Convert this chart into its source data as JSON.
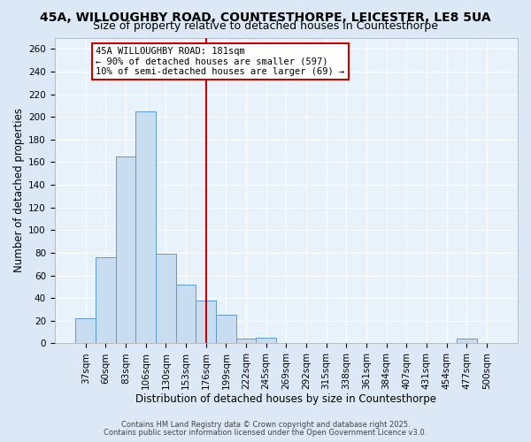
{
  "title1": "45A, WILLOUGHBY ROAD, COUNTESTHORPE, LEICESTER, LE8 5UA",
  "title2": "Size of property relative to detached houses in Countesthorpe",
  "xlabel": "Distribution of detached houses by size in Countesthorpe",
  "ylabel": "Number of detached properties",
  "bar_labels": [
    "37sqm",
    "60sqm",
    "83sqm",
    "106sqm",
    "130sqm",
    "153sqm",
    "176sqm",
    "199sqm",
    "222sqm",
    "245sqm",
    "269sqm",
    "292sqm",
    "315sqm",
    "338sqm",
    "361sqm",
    "384sqm",
    "407sqm",
    "431sqm",
    "454sqm",
    "477sqm",
    "500sqm"
  ],
  "bar_values": [
    22,
    76,
    165,
    205,
    79,
    52,
    38,
    25,
    4,
    5,
    0,
    0,
    0,
    0,
    0,
    0,
    0,
    0,
    0,
    4,
    0
  ],
  "bar_color": "#c9ddf0",
  "bar_edge_color": "#5b9bd5",
  "vline_x": 6,
  "vline_color": "#cc0000",
  "annotation_title": "45A WILLOUGHBY ROAD: 181sqm",
  "annotation_line1": "← 90% of detached houses are smaller (597)",
  "annotation_line2": "10% of semi-detached houses are larger (69) →",
  "annotation_box_color": "#ffffff",
  "annotation_box_edge": "#cc0000",
  "ylim": [
    0,
    270
  ],
  "yticks": [
    0,
    20,
    40,
    60,
    80,
    100,
    120,
    140,
    160,
    180,
    200,
    220,
    240,
    260
  ],
  "background_color": "#dce8f5",
  "plot_bg_color": "#e8f2fa",
  "footer1": "Contains HM Land Registry data © Crown copyright and database right 2025.",
  "footer2": "Contains public sector information licensed under the Open Government Licence v3.0.",
  "title1_fontsize": 10,
  "title2_fontsize": 9,
  "xlabel_fontsize": 8.5,
  "ylabel_fontsize": 8.5,
  "tick_fontsize": 7.5,
  "footer_fontsize": 6.0
}
